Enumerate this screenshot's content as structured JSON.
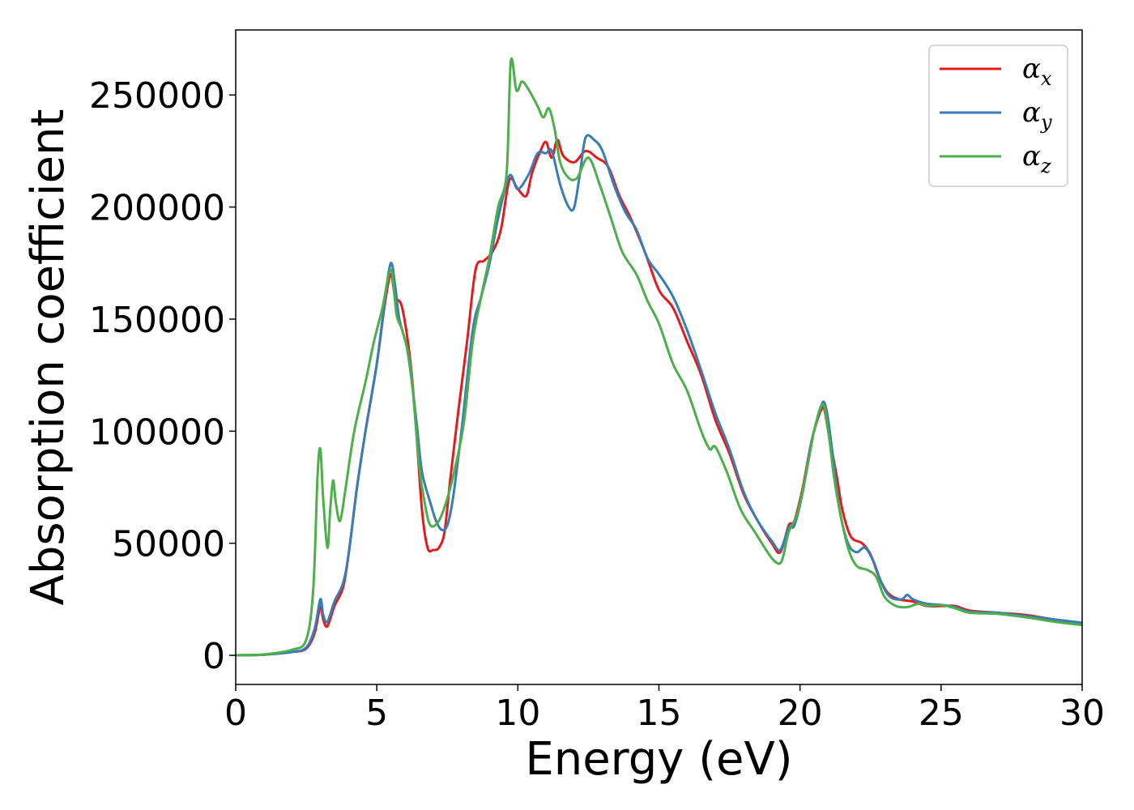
{
  "chart_data": {
    "type": "line",
    "title": "",
    "xlabel": "Energy (eV)",
    "ylabel": "Absorption coefficient",
    "xlim": [
      0,
      30
    ],
    "ylim": [
      -13000,
      279000
    ],
    "xticks": [
      0,
      5,
      10,
      15,
      20,
      25,
      30
    ],
    "yticks": [
      0,
      50000,
      100000,
      150000,
      200000,
      250000
    ],
    "grid": false,
    "legend_position": "top-right",
    "series": [
      {
        "name": "α",
        "subscript": "x",
        "color": "#e41a1c",
        "points": [
          [
            0,
            0
          ],
          [
            1,
            300
          ],
          [
            2,
            1500
          ],
          [
            2.5,
            3000
          ],
          [
            2.8,
            10000
          ],
          [
            3.0,
            22000
          ],
          [
            3.1,
            16000
          ],
          [
            3.25,
            13000
          ],
          [
            3.5,
            22000
          ],
          [
            3.8,
            30000
          ],
          [
            4.0,
            45000
          ],
          [
            4.3,
            75000
          ],
          [
            4.6,
            100000
          ],
          [
            5.0,
            130000
          ],
          [
            5.3,
            158000
          ],
          [
            5.5,
            170000
          ],
          [
            5.65,
            160000
          ],
          [
            5.9,
            155000
          ],
          [
            6.2,
            130000
          ],
          [
            6.4,
            100000
          ],
          [
            6.6,
            65000
          ],
          [
            6.8,
            48000
          ],
          [
            7.0,
            47000
          ],
          [
            7.2,
            48000
          ],
          [
            7.4,
            55000
          ],
          [
            7.6,
            78000
          ],
          [
            7.9,
            110000
          ],
          [
            8.2,
            140000
          ],
          [
            8.5,
            172000
          ],
          [
            8.8,
            176000
          ],
          [
            9.1,
            180000
          ],
          [
            9.4,
            190000
          ],
          [
            9.7,
            212000
          ],
          [
            10.0,
            208000
          ],
          [
            10.3,
            205000
          ],
          [
            10.5,
            215000
          ],
          [
            10.8,
            225000
          ],
          [
            11.0,
            229000
          ],
          [
            11.2,
            222000
          ],
          [
            11.4,
            230000
          ],
          [
            11.6,
            223000
          ],
          [
            12.0,
            220000
          ],
          [
            12.4,
            225000
          ],
          [
            12.8,
            222000
          ],
          [
            13.2,
            218000
          ],
          [
            13.6,
            205000
          ],
          [
            14.0,
            195000
          ],
          [
            14.5,
            180000
          ],
          [
            15.0,
            163000
          ],
          [
            15.5,
            155000
          ],
          [
            16.0,
            140000
          ],
          [
            16.5,
            125000
          ],
          [
            17.0,
            105000
          ],
          [
            17.5,
            90000
          ],
          [
            18.0,
            72000
          ],
          [
            18.5,
            60000
          ],
          [
            19.0,
            50000
          ],
          [
            19.3,
            46000
          ],
          [
            19.6,
            58000
          ],
          [
            19.8,
            60000
          ],
          [
            20.1,
            75000
          ],
          [
            20.4,
            95000
          ],
          [
            20.7,
            108000
          ],
          [
            20.85,
            110000
          ],
          [
            21.0,
            100000
          ],
          [
            21.3,
            80000
          ],
          [
            21.5,
            65000
          ],
          [
            21.8,
            53000
          ],
          [
            22.2,
            50000
          ],
          [
            22.5,
            45000
          ],
          [
            22.8,
            35000
          ],
          [
            23.1,
            28000
          ],
          [
            23.5,
            25000
          ],
          [
            24.0,
            24000
          ],
          [
            24.5,
            22000
          ],
          [
            25.0,
            22000
          ],
          [
            25.5,
            22000
          ],
          [
            26.0,
            20000
          ],
          [
            27.0,
            19000
          ],
          [
            28.0,
            18000
          ],
          [
            29.0,
            16000
          ],
          [
            30.0,
            14500
          ]
        ]
      },
      {
        "name": "α",
        "subscript": "y",
        "color": "#377eb8",
        "points": [
          [
            0,
            0
          ],
          [
            1,
            300
          ],
          [
            2,
            1500
          ],
          [
            2.5,
            3500
          ],
          [
            2.8,
            12000
          ],
          [
            3.0,
            25000
          ],
          [
            3.1,
            18000
          ],
          [
            3.25,
            15000
          ],
          [
            3.5,
            24000
          ],
          [
            3.8,
            32000
          ],
          [
            4.0,
            45000
          ],
          [
            4.3,
            75000
          ],
          [
            4.6,
            100000
          ],
          [
            5.0,
            130000
          ],
          [
            5.3,
            160000
          ],
          [
            5.5,
            175000
          ],
          [
            5.65,
            165000
          ],
          [
            5.8,
            150000
          ],
          [
            6.1,
            135000
          ],
          [
            6.4,
            105000
          ],
          [
            6.6,
            82000
          ],
          [
            6.9,
            68000
          ],
          [
            7.1,
            60000
          ],
          [
            7.3,
            56000
          ],
          [
            7.5,
            58000
          ],
          [
            7.7,
            70000
          ],
          [
            8.0,
            100000
          ],
          [
            8.4,
            145000
          ],
          [
            8.7,
            160000
          ],
          [
            9.0,
            175000
          ],
          [
            9.3,
            195000
          ],
          [
            9.7,
            214000
          ],
          [
            10.0,
            208000
          ],
          [
            10.4,
            215000
          ],
          [
            10.7,
            224000
          ],
          [
            11.0,
            224000
          ],
          [
            11.2,
            225000
          ],
          [
            11.5,
            210000
          ],
          [
            11.8,
            200000
          ],
          [
            12.0,
            200000
          ],
          [
            12.2,
            215000
          ],
          [
            12.4,
            231000
          ],
          [
            12.7,
            230000
          ],
          [
            13.0,
            225000
          ],
          [
            13.4,
            210000
          ],
          [
            13.8,
            198000
          ],
          [
            14.2,
            190000
          ],
          [
            14.6,
            177000
          ],
          [
            15.0,
            170000
          ],
          [
            15.5,
            160000
          ],
          [
            16.0,
            145000
          ],
          [
            16.5,
            127000
          ],
          [
            17.0,
            108000
          ],
          [
            17.5,
            92000
          ],
          [
            18.0,
            73000
          ],
          [
            18.5,
            60000
          ],
          [
            19.0,
            51000
          ],
          [
            19.3,
            47000
          ],
          [
            19.6,
            57000
          ],
          [
            19.8,
            58000
          ],
          [
            20.1,
            73000
          ],
          [
            20.4,
            95000
          ],
          [
            20.7,
            109000
          ],
          [
            20.85,
            113000
          ],
          [
            21.0,
            105000
          ],
          [
            21.2,
            85000
          ],
          [
            21.4,
            65000
          ],
          [
            21.7,
            50000
          ],
          [
            22.0,
            46000
          ],
          [
            22.3,
            48000
          ],
          [
            22.6,
            42000
          ],
          [
            22.9,
            32000
          ],
          [
            23.2,
            26000
          ],
          [
            23.6,
            25000
          ],
          [
            23.8,
            27000
          ],
          [
            24.0,
            25000
          ],
          [
            24.5,
            23000
          ],
          [
            25.0,
            22500
          ],
          [
            25.5,
            21500
          ],
          [
            26.0,
            19500
          ],
          [
            27.0,
            19000
          ],
          [
            28.0,
            17500
          ],
          [
            29.0,
            16000
          ],
          [
            30.0,
            14500
          ]
        ]
      },
      {
        "name": "α",
        "subscript": "z",
        "color": "#4daf4a",
        "points": [
          [
            0,
            0
          ],
          [
            1,
            400
          ],
          [
            2,
            2500
          ],
          [
            2.5,
            7000
          ],
          [
            2.75,
            30000
          ],
          [
            2.9,
            80000
          ],
          [
            3.0,
            92000
          ],
          [
            3.1,
            70000
          ],
          [
            3.25,
            48000
          ],
          [
            3.35,
            65000
          ],
          [
            3.45,
            78000
          ],
          [
            3.55,
            68000
          ],
          [
            3.7,
            60000
          ],
          [
            3.9,
            75000
          ],
          [
            4.2,
            100000
          ],
          [
            4.6,
            122000
          ],
          [
            4.9,
            140000
          ],
          [
            5.2,
            155000
          ],
          [
            5.5,
            172000
          ],
          [
            5.7,
            152000
          ],
          [
            5.9,
            145000
          ],
          [
            6.2,
            128000
          ],
          [
            6.5,
            85000
          ],
          [
            6.7,
            68000
          ],
          [
            6.9,
            58000
          ],
          [
            7.2,
            60000
          ],
          [
            7.5,
            70000
          ],
          [
            7.8,
            85000
          ],
          [
            8.1,
            105000
          ],
          [
            8.4,
            140000
          ],
          [
            8.7,
            160000
          ],
          [
            9.0,
            178000
          ],
          [
            9.3,
            200000
          ],
          [
            9.6,
            215000
          ],
          [
            9.75,
            265000
          ],
          [
            9.95,
            252000
          ],
          [
            10.15,
            256000
          ],
          [
            10.4,
            252000
          ],
          [
            10.7,
            245000
          ],
          [
            10.9,
            240000
          ],
          [
            11.1,
            244000
          ],
          [
            11.3,
            235000
          ],
          [
            11.5,
            220000
          ],
          [
            11.8,
            213000
          ],
          [
            12.1,
            213000
          ],
          [
            12.5,
            222000
          ],
          [
            12.9,
            210000
          ],
          [
            13.3,
            195000
          ],
          [
            13.7,
            180000
          ],
          [
            14.2,
            170000
          ],
          [
            14.6,
            158000
          ],
          [
            15.0,
            148000
          ],
          [
            15.5,
            130000
          ],
          [
            16.0,
            118000
          ],
          [
            16.5,
            100000
          ],
          [
            16.8,
            92000
          ],
          [
            17.0,
            93000
          ],
          [
            17.4,
            82000
          ],
          [
            17.9,
            65000
          ],
          [
            18.4,
            55000
          ],
          [
            18.8,
            47000
          ],
          [
            19.1,
            42000
          ],
          [
            19.35,
            42000
          ],
          [
            19.6,
            55000
          ],
          [
            19.9,
            63000
          ],
          [
            20.2,
            80000
          ],
          [
            20.5,
            100000
          ],
          [
            20.8,
            112000
          ],
          [
            21.0,
            100000
          ],
          [
            21.2,
            80000
          ],
          [
            21.4,
            65000
          ],
          [
            21.7,
            48000
          ],
          [
            22.0,
            40000
          ],
          [
            22.4,
            38000
          ],
          [
            22.7,
            35000
          ],
          [
            23.0,
            26000
          ],
          [
            23.4,
            22000
          ],
          [
            23.8,
            21500
          ],
          [
            24.2,
            23000
          ],
          [
            24.6,
            22000
          ],
          [
            25.0,
            22500
          ],
          [
            25.5,
            21000
          ],
          [
            26.0,
            19000
          ],
          [
            27.0,
            18500
          ],
          [
            28.0,
            17000
          ],
          [
            29.0,
            15000
          ],
          [
            30.0,
            13500
          ]
        ]
      }
    ]
  }
}
